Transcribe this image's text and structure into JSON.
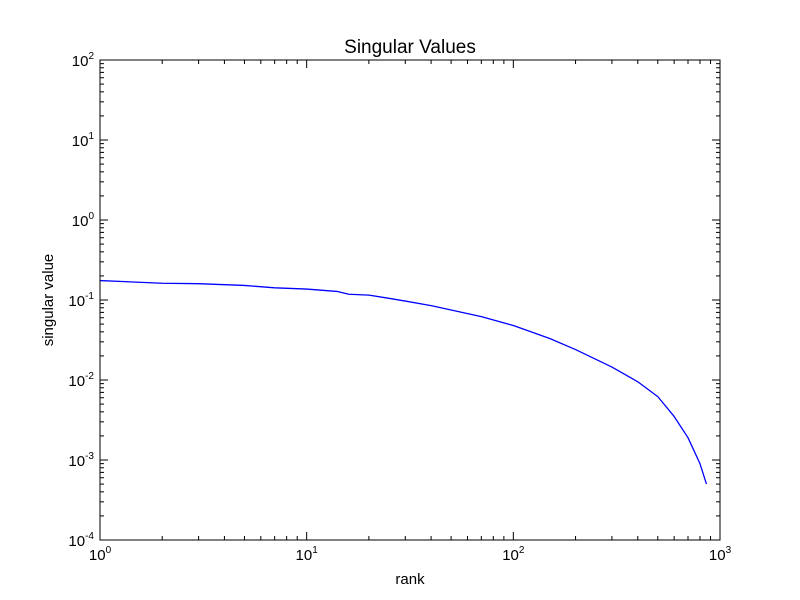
{
  "chart_data": {
    "type": "line",
    "title": "Singular Values",
    "xlabel": "rank",
    "ylabel": "singular value",
    "xscale": "log",
    "yscale": "log",
    "xlim": [
      1,
      1000
    ],
    "ylim": [
      0.0001,
      100
    ],
    "grid": false,
    "legend": "none",
    "x_ticks": [
      {
        "value": 1,
        "base": "10",
        "exp": "0"
      },
      {
        "value": 10,
        "base": "10",
        "exp": "1"
      },
      {
        "value": 100,
        "base": "10",
        "exp": "2"
      },
      {
        "value": 1000,
        "base": "10",
        "exp": "3"
      }
    ],
    "y_ticks": [
      {
        "value": 0.0001,
        "base": "10",
        "exp": "-4"
      },
      {
        "value": 0.001,
        "base": "10",
        "exp": "-3"
      },
      {
        "value": 0.01,
        "base": "10",
        "exp": "-2"
      },
      {
        "value": 0.1,
        "base": "10",
        "exp": "-1"
      },
      {
        "value": 1,
        "base": "10",
        "exp": "0"
      },
      {
        "value": 10,
        "base": "10",
        "exp": "1"
      },
      {
        "value": 100,
        "base": "10",
        "exp": "2"
      }
    ],
    "series": [
      {
        "color": "#0000ff",
        "x": [
          1,
          2,
          3,
          5,
          7,
          10,
          14,
          16,
          20,
          25,
          30,
          40,
          50,
          70,
          100,
          150,
          200,
          300,
          400,
          500,
          600,
          700,
          800,
          860
        ],
        "y": [
          0.175,
          0.162,
          0.16,
          0.152,
          0.142,
          0.137,
          0.128,
          0.118,
          0.115,
          0.105,
          0.097,
          0.085,
          0.075,
          0.062,
          0.048,
          0.033,
          0.024,
          0.0145,
          0.0095,
          0.0062,
          0.0035,
          0.0019,
          0.0009,
          0.0005
        ]
      }
    ]
  }
}
